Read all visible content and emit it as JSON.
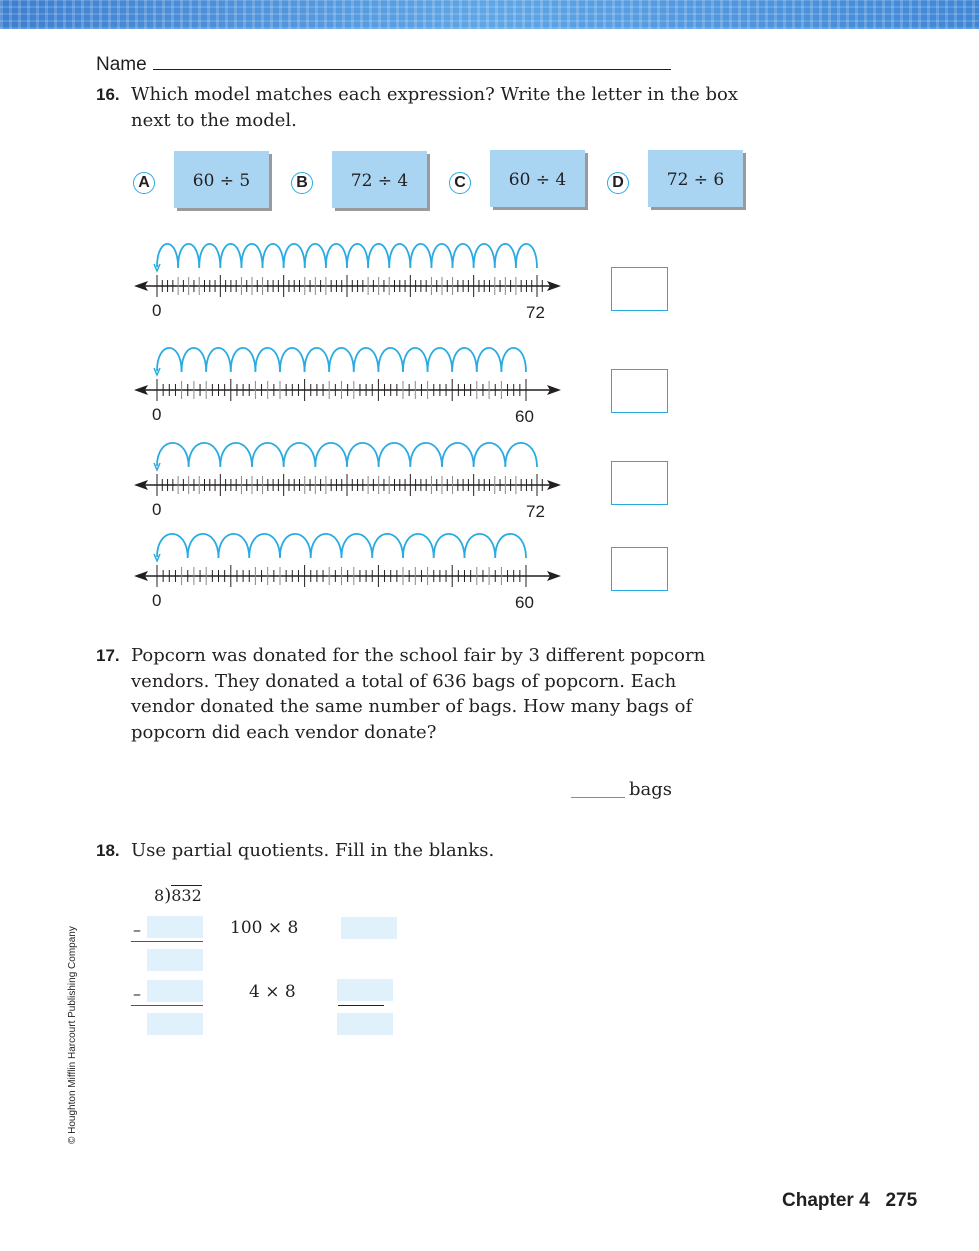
{
  "header": {
    "name_label": "Name"
  },
  "q16": {
    "number": "16.",
    "text_line1": "Which model matches each expression? Write the letter in the box",
    "text_line2": "next to the model.",
    "options": [
      {
        "letter": "A",
        "expr": "60 ÷ 5"
      },
      {
        "letter": "B",
        "expr": "72 ÷ 4"
      },
      {
        "letter": "C",
        "expr": "60 ÷ 4"
      },
      {
        "letter": "D",
        "expr": "72 ÷ 6"
      }
    ],
    "number_lines": [
      {
        "start": "0",
        "end": "72",
        "end_value": 72,
        "jumps": 18
      },
      {
        "start": "0",
        "end": "60",
        "end_value": 60,
        "jumps": 15
      },
      {
        "start": "0",
        "end": "72",
        "end_value": 72,
        "jumps": 12
      },
      {
        "start": "0",
        "end": "60",
        "end_value": 60,
        "jumps": 12
      }
    ],
    "accent": "#29abe2"
  },
  "q17": {
    "number": "17.",
    "lines": [
      "Popcorn was donated for the school fair by 3 different popcorn",
      "vendors. They donated a total of 636 bags of popcorn. Each",
      "vendor donated the same number of bags. How many bags of",
      "popcorn did each vendor donate?"
    ],
    "unit": "bags"
  },
  "q18": {
    "number": "18.",
    "text": "Use partial quotients. Fill in the blanks.",
    "divisor": "8",
    "dividend": "832",
    "minus": "–",
    "step1": "100 × 8",
    "step2": "4 × 8"
  },
  "footer": {
    "copyright": "© Houghton Mifflin Harcourt Publishing Company",
    "chapter": "Chapter 4",
    "page": "275"
  }
}
